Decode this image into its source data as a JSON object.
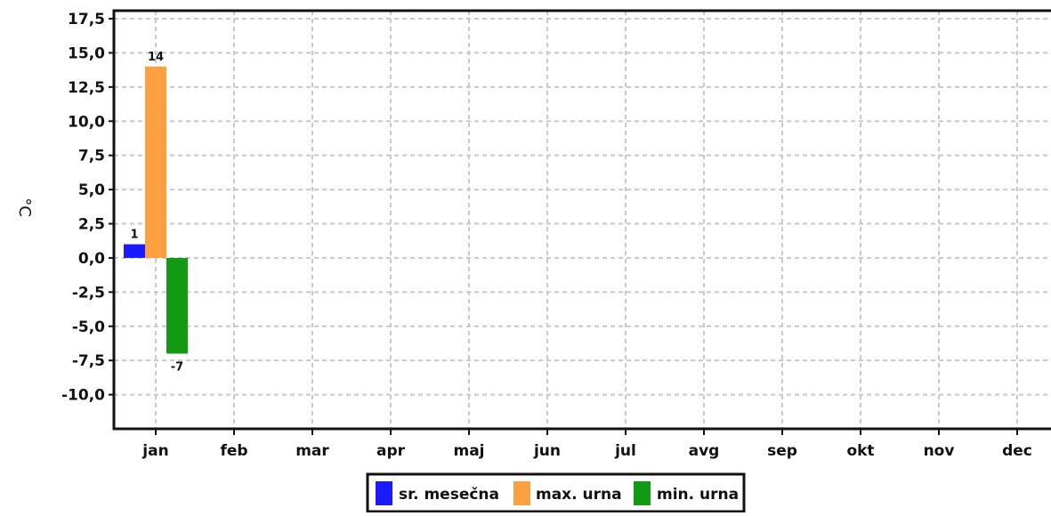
{
  "chart_data": {
    "type": "bar",
    "ylabel": "°C",
    "ylim": [
      -12.5,
      17.5
    ],
    "yticks": [
      "17,5",
      "15,0",
      "12,5",
      "10,0",
      "7,5",
      "5,0",
      "2,5",
      "0,0",
      "-2,5",
      "-5,0",
      "-7,5",
      "-10,0"
    ],
    "categories": [
      "jan",
      "feb",
      "mar",
      "apr",
      "maj",
      "jun",
      "jul",
      "avg",
      "sep",
      "okt",
      "nov",
      "dec"
    ],
    "series": [
      {
        "name": "sr. mesečna",
        "color": "#1a1aff",
        "values": [
          1,
          null,
          null,
          null,
          null,
          null,
          null,
          null,
          null,
          null,
          null,
          null
        ],
        "labels": [
          "1"
        ]
      },
      {
        "name": "max. urna",
        "color": "#ffa040",
        "values": [
          14,
          null,
          null,
          null,
          null,
          null,
          null,
          null,
          null,
          null,
          null,
          null
        ],
        "labels": [
          "14"
        ]
      },
      {
        "name": "min. urna",
        "color": "#139a13",
        "values": [
          -7,
          null,
          null,
          null,
          null,
          null,
          null,
          null,
          null,
          null,
          null,
          null
        ],
        "labels": [
          "-7"
        ]
      }
    ],
    "grid": true,
    "legend": "bottom"
  }
}
